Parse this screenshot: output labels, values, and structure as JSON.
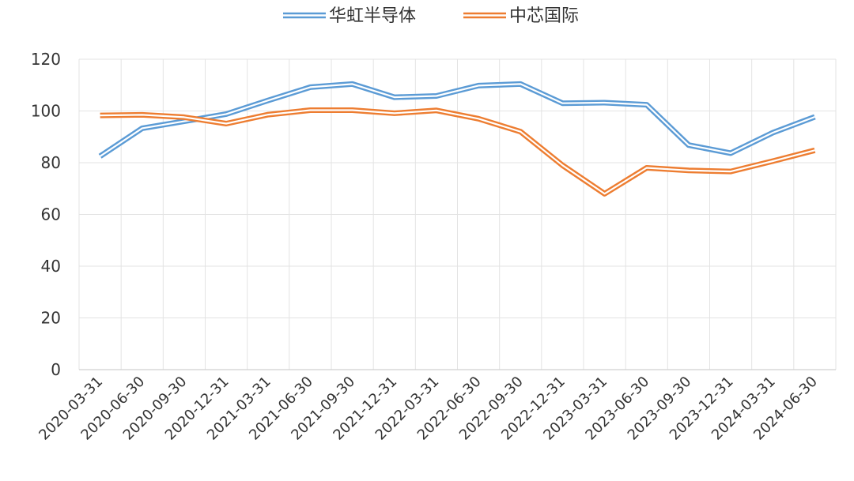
{
  "chart_data": {
    "type": "line",
    "title": "",
    "xlabel": "",
    "ylabel": "",
    "ylim": [
      0,
      120
    ],
    "yticks": [
      0,
      20,
      40,
      60,
      80,
      100,
      120
    ],
    "grid": true,
    "legend": "top-center",
    "categories": [
      "2020-03-31",
      "2020-06-30",
      "2020-09-30",
      "2020-12-31",
      "2021-03-31",
      "2021-06-30",
      "2021-09-30",
      "2021-12-31",
      "2022-03-31",
      "2022-06-30",
      "2022-09-30",
      "2022-12-31",
      "2023-03-31",
      "2023-06-30",
      "2023-09-30",
      "2023-12-31",
      "2024-03-31",
      "2024-06-30"
    ],
    "series": [
      {
        "name": "华虹半导体",
        "color": "#5B9BD5",
        "values": [
          82.5,
          93.3,
          96.0,
          98.8,
          104.1,
          109.2,
          110.4,
          105.3,
          105.8,
          109.8,
          110.4,
          103.0,
          103.2,
          102.4,
          86.8,
          83.7,
          91.6,
          97.7
        ]
      },
      {
        "name": "中芯国际",
        "color": "#ED7D31",
        "values": [
          98.3,
          98.5,
          97.6,
          95.1,
          98.6,
          100.3,
          100.3,
          99.1,
          100.2,
          97.0,
          92.0,
          79.0,
          68.0,
          78.0,
          77.0,
          76.6,
          80.6,
          84.8
        ]
      }
    ]
  }
}
